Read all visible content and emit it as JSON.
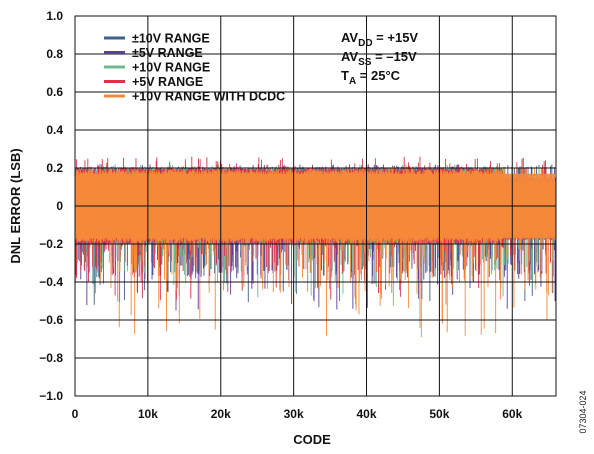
{
  "chart_data": {
    "type": "line",
    "xlabel": "CODE",
    "ylabel": "DNL ERROR (LSB)",
    "xlim": [
      0,
      66000
    ],
    "ylim": [
      -1.0,
      1.0
    ],
    "x_ticks": [
      0,
      10000,
      20000,
      30000,
      40000,
      50000,
      60000
    ],
    "x_tick_labels": [
      "0",
      "10k",
      "20k",
      "30k",
      "40k",
      "50k",
      "60k"
    ],
    "y_ticks": [
      1.0,
      0.8,
      0.6,
      0.4,
      0.2,
      0,
      -0.2,
      -0.4,
      -0.6,
      -0.8,
      -1.0
    ],
    "y_tick_labels": [
      "1.0",
      "0.8",
      "0.6",
      "0.4",
      "0.2",
      "0",
      "−0.2",
      "−0.4",
      "−0.6",
      "−0.8",
      "−1.0"
    ],
    "grid": true,
    "legend_position": "top-left",
    "series": [
      {
        "name": "±10V RANGE",
        "color": "#3f5f8f",
        "band": [
          -0.2,
          0.2
        ],
        "spike_min": -0.52,
        "spike_max": 0.21
      },
      {
        "name": "±5V RANGE",
        "color": "#5b3f98",
        "band": [
          -0.2,
          0.2
        ],
        "spike_min": -0.55,
        "spike_max": 0.22
      },
      {
        "name": "+10V RANGE",
        "color": "#6fb890",
        "band": [
          -0.2,
          0.2
        ],
        "spike_min": -0.48,
        "spike_max": 0.22
      },
      {
        "name": "+5V RANGE",
        "color": "#d9344a",
        "band": [
          -0.2,
          0.2
        ],
        "spike_min": -0.5,
        "spike_max": 0.26
      },
      {
        "name": "+10V RANGE WITH DCDC",
        "color": "#f5883a",
        "band": [
          -0.19,
          0.19
        ],
        "spike_min": -0.69,
        "spike_max": 0.21
      }
    ],
    "conditions": {
      "avdd": {
        "prefix": "AV",
        "sub": "DD",
        "suffix": " = +15V"
      },
      "avss": {
        "prefix": "AV",
        "sub": "SS",
        "suffix": " = –15V"
      },
      "ta": {
        "prefix": "T",
        "sub": "A",
        "suffix": " = 25°C"
      }
    },
    "figure_id": "07304-024"
  }
}
